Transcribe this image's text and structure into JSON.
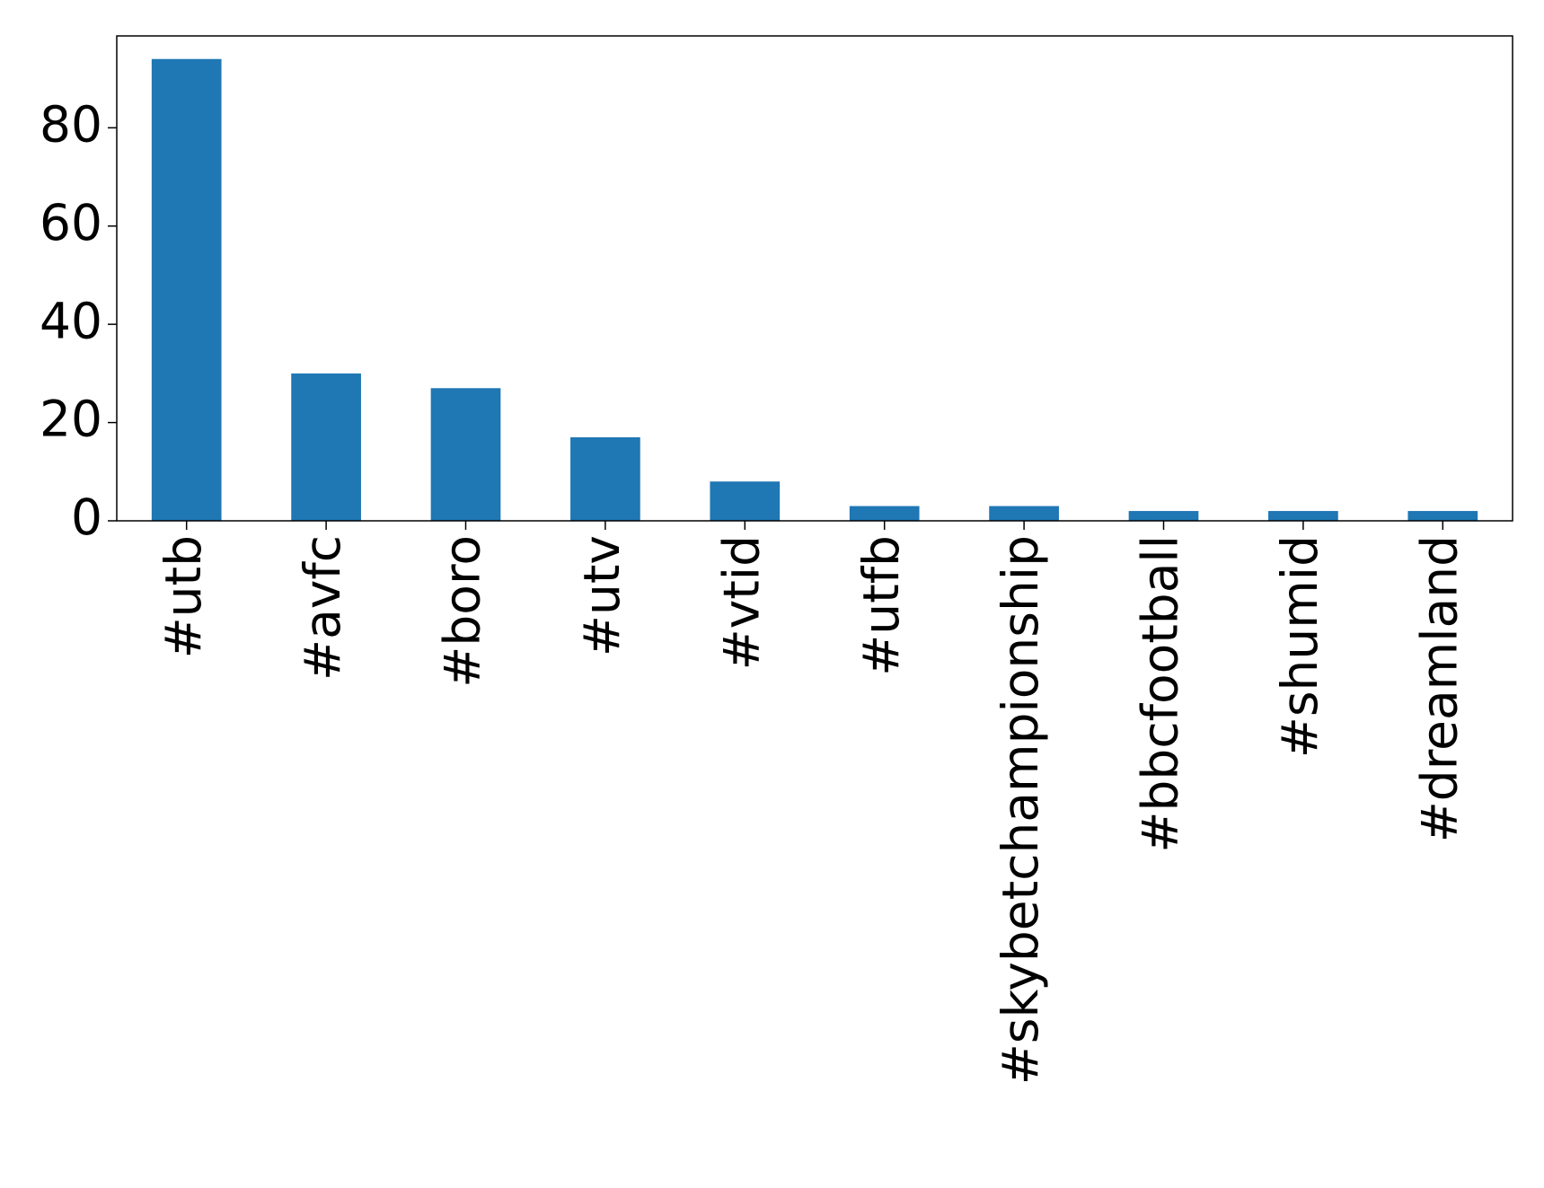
{
  "chart_data": {
    "type": "bar",
    "categories": [
      "#utb",
      "#avfc",
      "#boro",
      "#utv",
      "#vtid",
      "#utfb",
      "#skybetchampionship",
      "#bbcfootball",
      "#shumid",
      "#dreamland"
    ],
    "values": [
      94,
      30,
      27,
      17,
      8,
      3,
      3,
      2,
      2,
      2
    ],
    "color": "#1f77b4",
    "ylim": [
      0,
      98.7
    ],
    "yticks": [
      0,
      20,
      40,
      60,
      80
    ],
    "grid": false
  }
}
